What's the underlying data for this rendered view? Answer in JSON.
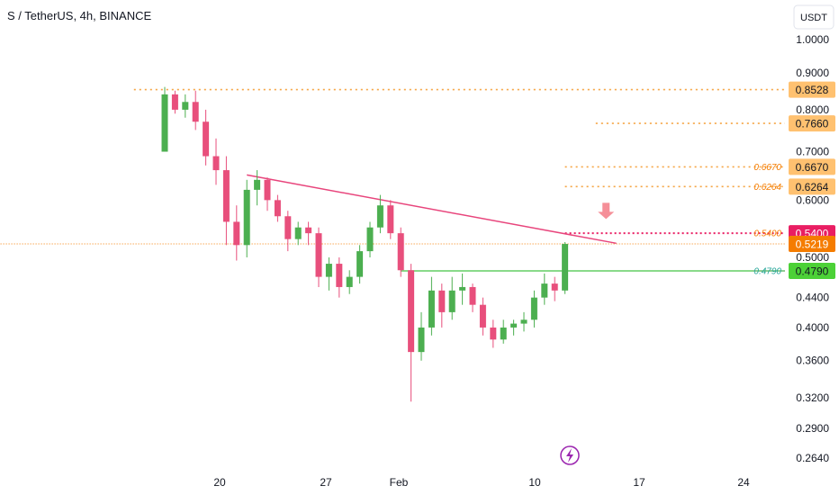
{
  "chart_data": {
    "type": "candlestick",
    "title": "S / TetherUS, 4h, BINANCE",
    "currency": "USDT",
    "scale": "log",
    "ylim": [
      0.25,
      1.04
    ],
    "y_ticks": [
      1.0,
      0.9,
      0.8,
      0.7,
      0.6,
      0.5,
      0.44,
      0.4,
      0.36,
      0.32,
      0.29,
      0.264
    ],
    "y_tick_labels": [
      "1.0000",
      "0.9000",
      "0.8000",
      "0.7000",
      "0.6000",
      "0.5000",
      "0.4400",
      "0.4000",
      "0.3600",
      "0.3200",
      "0.2900",
      "0.2640"
    ],
    "x_tick_labels": [
      "20",
      "27",
      "Feb",
      "10",
      "17",
      "24"
    ],
    "price_series": [
      {
        "t": 0,
        "o": 0.7,
        "h": 0.86,
        "l": 0.7,
        "c": 0.84
      },
      {
        "t": 1,
        "o": 0.84,
        "h": 0.85,
        "l": 0.79,
        "c": 0.8
      },
      {
        "t": 2,
        "o": 0.8,
        "h": 0.84,
        "l": 0.78,
        "c": 0.82
      },
      {
        "t": 3,
        "o": 0.82,
        "h": 0.85,
        "l": 0.75,
        "c": 0.77
      },
      {
        "t": 4,
        "o": 0.77,
        "h": 0.8,
        "l": 0.67,
        "c": 0.69
      },
      {
        "t": 5,
        "o": 0.69,
        "h": 0.73,
        "l": 0.63,
        "c": 0.66
      },
      {
        "t": 6,
        "o": 0.66,
        "h": 0.69,
        "l": 0.52,
        "c": 0.56
      },
      {
        "t": 7,
        "o": 0.56,
        "h": 0.59,
        "l": 0.495,
        "c": 0.52
      },
      {
        "t": 8,
        "o": 0.52,
        "h": 0.64,
        "l": 0.5,
        "c": 0.62
      },
      {
        "t": 9,
        "o": 0.62,
        "h": 0.66,
        "l": 0.59,
        "c": 0.64
      },
      {
        "t": 10,
        "o": 0.64,
        "h": 0.645,
        "l": 0.58,
        "c": 0.6
      },
      {
        "t": 11,
        "o": 0.6,
        "h": 0.61,
        "l": 0.56,
        "c": 0.57
      },
      {
        "t": 12,
        "o": 0.57,
        "h": 0.58,
        "l": 0.51,
        "c": 0.53
      },
      {
        "t": 13,
        "o": 0.53,
        "h": 0.56,
        "l": 0.52,
        "c": 0.55
      },
      {
        "t": 14,
        "o": 0.55,
        "h": 0.56,
        "l": 0.52,
        "c": 0.54
      },
      {
        "t": 15,
        "o": 0.54,
        "h": 0.55,
        "l": 0.455,
        "c": 0.47
      },
      {
        "t": 16,
        "o": 0.47,
        "h": 0.5,
        "l": 0.45,
        "c": 0.49
      },
      {
        "t": 17,
        "o": 0.49,
        "h": 0.5,
        "l": 0.44,
        "c": 0.455
      },
      {
        "t": 18,
        "o": 0.455,
        "h": 0.48,
        "l": 0.445,
        "c": 0.47
      },
      {
        "t": 19,
        "o": 0.47,
        "h": 0.52,
        "l": 0.46,
        "c": 0.51
      },
      {
        "t": 20,
        "o": 0.51,
        "h": 0.56,
        "l": 0.5,
        "c": 0.55
      },
      {
        "t": 21,
        "o": 0.55,
        "h": 0.61,
        "l": 0.54,
        "c": 0.59
      },
      {
        "t": 22,
        "o": 0.59,
        "h": 0.6,
        "l": 0.53,
        "c": 0.54
      },
      {
        "t": 23,
        "o": 0.54,
        "h": 0.55,
        "l": 0.47,
        "c": 0.48
      },
      {
        "t": 24,
        "o": 0.48,
        "h": 0.49,
        "l": 0.316,
        "c": 0.37
      },
      {
        "t": 25,
        "o": 0.37,
        "h": 0.42,
        "l": 0.36,
        "c": 0.4
      },
      {
        "t": 26,
        "o": 0.4,
        "h": 0.47,
        "l": 0.39,
        "c": 0.45
      },
      {
        "t": 27,
        "o": 0.45,
        "h": 0.46,
        "l": 0.4,
        "c": 0.42
      },
      {
        "t": 28,
        "o": 0.42,
        "h": 0.47,
        "l": 0.41,
        "c": 0.45
      },
      {
        "t": 29,
        "o": 0.45,
        "h": 0.475,
        "l": 0.43,
        "c": 0.455
      },
      {
        "t": 30,
        "o": 0.455,
        "h": 0.46,
        "l": 0.42,
        "c": 0.43
      },
      {
        "t": 31,
        "o": 0.43,
        "h": 0.44,
        "l": 0.39,
        "c": 0.4
      },
      {
        "t": 32,
        "o": 0.4,
        "h": 0.41,
        "l": 0.375,
        "c": 0.385
      },
      {
        "t": 33,
        "o": 0.385,
        "h": 0.41,
        "l": 0.38,
        "c": 0.4
      },
      {
        "t": 34,
        "o": 0.4,
        "h": 0.41,
        "l": 0.39,
        "c": 0.405
      },
      {
        "t": 35,
        "o": 0.405,
        "h": 0.42,
        "l": 0.395,
        "c": 0.41
      },
      {
        "t": 36,
        "o": 0.41,
        "h": 0.45,
        "l": 0.4,
        "c": 0.44
      },
      {
        "t": 37,
        "o": 0.44,
        "h": 0.475,
        "l": 0.43,
        "c": 0.46
      },
      {
        "t": 38,
        "o": 0.46,
        "h": 0.47,
        "l": 0.435,
        "c": 0.45
      },
      {
        "t": 39,
        "o": 0.45,
        "h": 0.525,
        "l": 0.445,
        "c": 0.5219
      }
    ],
    "resistance_line": {
      "from": {
        "t": 8,
        "price": 0.65
      },
      "to": {
        "t": 44,
        "price": 0.523
      }
    },
    "support_line": {
      "from": {
        "t": 23,
        "price": 0.479
      },
      "to": {
        "t": 56,
        "price": 0.479
      }
    },
    "levels": [
      {
        "price": 0.8528,
        "label": "",
        "badge": "0.8528",
        "style": "dotted",
        "kind": "orange",
        "from_t": -3
      },
      {
        "price": 0.766,
        "label": "",
        "badge": "0.7660",
        "style": "dotted",
        "kind": "orange",
        "from_t": 42
      },
      {
        "price": 0.667,
        "label": "0.6670",
        "badge": "0.6670",
        "style": "dotted",
        "kind": "orange",
        "from_t": 39
      },
      {
        "price": 0.6264,
        "label": "0.6264",
        "badge": "0.6264",
        "style": "dotted",
        "kind": "orange",
        "from_t": 39
      },
      {
        "price": 0.54,
        "label": "0.5400",
        "badge": "0.5400",
        "style": "dotted",
        "kind": "pink",
        "from_t": 39
      },
      {
        "price": 0.5219,
        "label": "",
        "badge": "0.5219",
        "style": "dotted-thin",
        "kind": "current",
        "from_t": -16
      },
      {
        "price": 0.479,
        "label": "0.4790",
        "badge": "0.4790",
        "style": "solid",
        "kind": "green",
        "from_t": 23
      }
    ],
    "arrow_annotation": {
      "t": 43,
      "price": 0.565,
      "direction": "down"
    },
    "colors": {
      "up": "#4caf50",
      "down": "#e84f7c",
      "orange": "#f5a340",
      "orange_badge": "#ffc170",
      "pink": "#e91e63",
      "green_badge": "#4cd137",
      "resistance": "#e8457c",
      "arrow": "#f58f98",
      "current_badge": "#f57c00",
      "lightning": "#9c27b0"
    }
  }
}
